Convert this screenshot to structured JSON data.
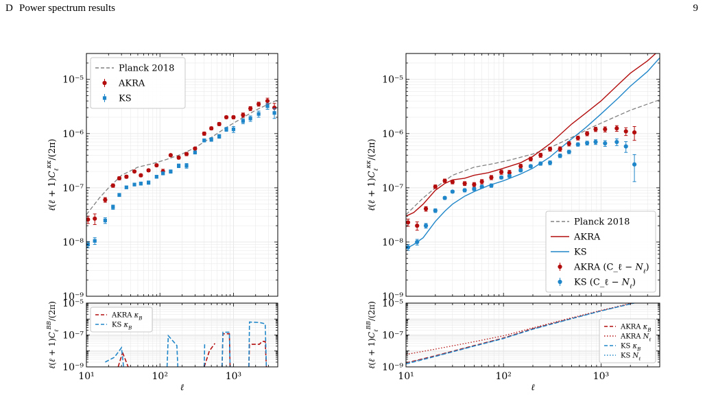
{
  "header": {
    "section_number": "D",
    "section_title": "Power spectrum results",
    "page_number": "9"
  },
  "colors": {
    "akra": "#b30d0d",
    "ks": "#1f86c9",
    "planck": "#808080",
    "grid": "#e6e6e6"
  },
  "chart_data": [
    {
      "panel": "left-top",
      "type": "scatter",
      "x_scale": "log",
      "y_scale": "log",
      "xlim": [
        10,
        4000
      ],
      "ylim": [
        1e-09,
        3e-05
      ],
      "ylabel": "ℓ(ℓ + 1)C_ℓ^κκ/(2π)",
      "grid": true,
      "legend_placement": "top-left",
      "y_tick_labels": [
        "10⁻⁹",
        "10⁻⁸",
        "10⁻⁷",
        "10⁻⁶",
        "10⁻⁵"
      ],
      "series": [
        {
          "name": "Planck 2018",
          "style": "dashed",
          "color": "#808080",
          "x": [
            10,
            15,
            20,
            30,
            50,
            80,
            120,
            200,
            300,
            500,
            800,
            1200,
            2000,
            3000,
            4000
          ],
          "y": [
            3.2e-08,
            6.5e-08,
            1e-07,
            1.7e-07,
            2.4e-07,
            2.8e-07,
            3.3e-07,
            4.2e-07,
            5.5e-07,
            8.5e-07,
            1.3e-06,
            1.8e-06,
            2.7e-06,
            3.5e-06,
            4.2e-06
          ]
        },
        {
          "name": "AKRA",
          "style": "points",
          "color": "#b30d0d",
          "x": [
            10.5,
            13,
            18,
            23,
            28,
            35,
            45,
            55,
            70,
            90,
            110,
            140,
            180,
            230,
            300,
            400,
            500,
            640,
            800,
            1000,
            1350,
            1700,
            2200,
            2900,
            3600
          ],
          "y": [
            2.6e-08,
            2.7e-08,
            6e-08,
            1.1e-07,
            1.5e-07,
            1.6e-07,
            2e-07,
            1.7e-07,
            2.1e-07,
            2.6e-07,
            2e-07,
            4e-07,
            3.6e-07,
            4.2e-07,
            5.3e-07,
            1e-06,
            1.25e-06,
            1.5e-06,
            2e-06,
            2e-06,
            2.2e-06,
            2.9e-06,
            3.5e-06,
            4e-06,
            3e-06
          ],
          "error_y": [
            4e-09,
            6e-09,
            6e-09,
            8e-09,
            1e-08,
            1e-08,
            1e-08,
            1e-08,
            1.2e-08,
            1.5e-08,
            2e-08,
            2e-08,
            2e-08,
            3e-08,
            3e-08,
            7e-08,
            8e-08,
            1e-07,
            1.2e-07,
            1.3e-07,
            2e-07,
            2.5e-07,
            3e-07,
            5e-07,
            6e-07
          ]
        },
        {
          "name": "KS",
          "style": "points",
          "color": "#1f86c9",
          "x": [
            10.5,
            13,
            18,
            23,
            28,
            35,
            45,
            55,
            70,
            90,
            110,
            140,
            180,
            230,
            300,
            400,
            500,
            640,
            800,
            1000,
            1350,
            1700,
            2200,
            2900,
            3600
          ],
          "y": [
            9e-09,
            1.05e-08,
            2.5e-08,
            4.4e-08,
            7.4e-08,
            1.02e-07,
            1.15e-07,
            1.2e-07,
            1.25e-07,
            1.6e-07,
            1.85e-07,
            2e-07,
            2.55e-07,
            2.55e-07,
            4.5e-07,
            7.5e-07,
            7.8e-07,
            8.9e-07,
            1.2e-06,
            1.2e-06,
            1.7e-06,
            1.9e-06,
            2.3e-06,
            3.2e-06,
            2.4e-06
          ],
          "error_y": [
            1.2e-09,
            1.5e-09,
            3e-09,
            4e-09,
            5e-09,
            6e-09,
            7e-09,
            8e-09,
            9e-09,
            1e-08,
            1.2e-08,
            1.4e-08,
            2e-08,
            2.5e-08,
            3e-08,
            5e-08,
            6e-08,
            7e-08,
            1e-07,
            1.5e-07,
            1.8e-07,
            2.2e-07,
            3e-07,
            4e-07,
            5e-07
          ]
        }
      ]
    },
    {
      "panel": "left-bottom",
      "type": "line",
      "x_scale": "log",
      "y_scale": "log",
      "xlim": [
        10,
        4000
      ],
      "ylim": [
        1e-09,
        1e-05
      ],
      "xlabel": "ℓ",
      "ylabel": "ℓ(ℓ + 1)C_ℓ^BB/(2π)",
      "grid": true,
      "legend_placement": "top-left",
      "x_tick_labels": [
        "10¹",
        "10²",
        "10³"
      ],
      "y_tick_labels": [
        "10⁻⁹",
        "10⁻⁷",
        "10⁻⁵"
      ],
      "series": [
        {
          "name": "AKRA κ_B",
          "style": "dashed",
          "color": "#b30d0d",
          "segments": [
            {
              "x": [
                27,
                31
              ],
              "y": [
                1e-09,
                8e-09
              ]
            },
            {
              "x": [
                31,
                37
              ],
              "y": [
                8e-09,
                1e-09
              ]
            },
            {
              "x": [
                400,
                470,
                560
              ],
              "y": [
                1e-09,
                1e-08,
                3e-08
              ]
            },
            {
              "x": [
                700,
                720,
                880,
                900
              ],
              "y": [
                1e-09,
                1.2e-07,
                1.2e-07,
                1e-09
              ]
            },
            {
              "x": [
                1620,
                1650,
                2250,
                2450,
                2700,
                2800
              ],
              "y": [
                1e-09,
                2.6e-08,
                2.6e-08,
                4e-08,
                4e-08,
                1e-09
              ]
            }
          ]
        },
        {
          "name": "KS κ_B",
          "style": "dashed",
          "color": "#1f86c9",
          "segments": [
            {
              "x": [
                18,
                24,
                30,
                32
              ],
              "y": [
                2e-09,
                4e-09,
                1.6e-08,
                1e-09
              ]
            },
            {
              "x": [
                125,
                130,
                170,
                175
              ],
              "y": [
                1e-09,
                9e-08,
                2.2e-08,
                1e-09
              ]
            },
            {
              "x": [
                400,
                405
              ],
              "y": [
                1e-09,
                2.6e-08
              ]
            },
            {
              "x": [
                700,
                720,
                880,
                900
              ],
              "y": [
                1e-09,
                1.5e-07,
                1.5e-07,
                1e-09
              ]
            },
            {
              "x": [
                1620,
                1650,
                2300,
                2700,
                2800
              ],
              "y": [
                1e-09,
                6.5e-07,
                6e-07,
                5e-07,
                1e-09
              ]
            }
          ]
        }
      ]
    },
    {
      "panel": "right-top",
      "type": "scatter",
      "x_scale": "log",
      "y_scale": "log",
      "xlim": [
        10,
        4000
      ],
      "ylim": [
        1e-09,
        3e-05
      ],
      "ylabel": "ℓ(ℓ + 1)C_ℓ^κκ/(2π)",
      "grid": true,
      "legend_placement": "bottom-right",
      "y_tick_labels": [
        "10⁻⁹",
        "10⁻⁸",
        "10⁻⁷",
        "10⁻⁶",
        "10⁻⁵"
      ],
      "series": [
        {
          "name": "Planck 2018",
          "style": "dashed",
          "color": "#808080",
          "x": [
            10,
            15,
            20,
            30,
            50,
            80,
            120,
            200,
            300,
            500,
            800,
            1200,
            2000,
            3000,
            4000
          ],
          "y": [
            3.2e-08,
            6.5e-08,
            1e-07,
            1.7e-07,
            2.4e-07,
            2.8e-07,
            3.3e-07,
            4.2e-07,
            5.5e-07,
            8.5e-07,
            1.3e-06,
            1.8e-06,
            2.7e-06,
            3.5e-06,
            4.2e-06
          ]
        },
        {
          "name": "AKRA",
          "style": "line",
          "color": "#b30d0d",
          "x": [
            10,
            12,
            15,
            20,
            25,
            30,
            40,
            50,
            70,
            100,
            150,
            200,
            300,
            500,
            700,
            1000,
            1500,
            2000,
            3000,
            4000
          ],
          "y": [
            3e-08,
            3.5e-08,
            5e-08,
            9e-08,
            1.2e-07,
            1.4e-07,
            1.5e-07,
            1.7e-07,
            1.9e-07,
            2.3e-07,
            2.9e-07,
            3.8e-07,
            6.5e-07,
            1.5e-06,
            2.4e-06,
            4e-06,
            8e-06,
            1.3e-05,
            2.2e-05,
            3.5e-05
          ]
        },
        {
          "name": "KS",
          "style": "line",
          "color": "#1f86c9",
          "x": [
            10,
            12,
            15,
            20,
            25,
            30,
            40,
            50,
            70,
            100,
            150,
            200,
            300,
            500,
            700,
            1000,
            1500,
            2000,
            3000,
            4000
          ],
          "y": [
            7.5e-09,
            9e-09,
            1.2e-08,
            2.4e-08,
            3.7e-08,
            5e-08,
            7e-08,
            8.5e-08,
            1.1e-07,
            1.35e-07,
            1.8e-07,
            2.3e-07,
            3.7e-07,
            8e-07,
            1.3e-06,
            2.3e-06,
            4.5e-06,
            7.5e-06,
            1.4e-05,
            2.5e-05
          ]
        },
        {
          "name": "AKRA (C_ℓ − N_ℓ)",
          "style": "points",
          "color": "#b30d0d",
          "x": [
            10.5,
            13,
            16,
            20,
            25,
            30,
            40,
            50,
            60,
            75,
            95,
            115,
            150,
            190,
            240,
            300,
            380,
            470,
            580,
            720,
            880,
            1100,
            1450,
            1800,
            2200
          ],
          "y": [
            2.3e-08,
            2e-08,
            4.1e-08,
            1.05e-07,
            1.35e-07,
            1.28e-07,
            1.2e-07,
            1.15e-07,
            1.3e-07,
            1.55e-07,
            1.95e-07,
            1.9e-07,
            2.5e-07,
            3.4e-07,
            4e-07,
            5.2e-07,
            5.2e-07,
            6.5e-07,
            8.3e-07,
            1e-06,
            1.2e-06,
            1.2e-06,
            1.25e-06,
            1.1e-06,
            1.05e-06
          ],
          "error_y": [
            3.5e-09,
            3.5e-09,
            4e-09,
            8e-09,
            1e-08,
            1e-08,
            1e-08,
            1e-08,
            1.2e-08,
            1.4e-08,
            1.8e-08,
            2e-08,
            2.2e-08,
            2.8e-08,
            3.5e-08,
            4.5e-08,
            5e-08,
            6e-08,
            7e-08,
            9e-08,
            1.1e-07,
            1.3e-07,
            1.5e-07,
            1.8e-07,
            3e-07
          ]
        },
        {
          "name": "KS (C_ℓ − N_ℓ)",
          "style": "points",
          "color": "#1f86c9",
          "x": [
            10.5,
            13,
            16,
            20,
            25,
            30,
            40,
            50,
            60,
            75,
            95,
            115,
            150,
            190,
            240,
            300,
            380,
            470,
            580,
            720,
            880,
            1100,
            1450,
            1800,
            2200
          ],
          "y": [
            8e-09,
            1e-08,
            2e-08,
            3.8e-08,
            6.5e-08,
            8.5e-08,
            9e-08,
            9.5e-08,
            1.05e-07,
            1.1e-07,
            1.55e-07,
            1.65e-07,
            2.1e-07,
            2.5e-07,
            2.8e-07,
            2.9e-07,
            3.9e-07,
            4.6e-07,
            6.3e-07,
            6.7e-07,
            7e-07,
            6.6e-07,
            7e-07,
            5.8e-07,
            2.7e-07
          ],
          "error_y": [
            1e-09,
            1.2e-09,
            2e-09,
            3e-09,
            4e-09,
            5e-09,
            6e-09,
            6.5e-09,
            7e-09,
            8e-09,
            1e-08,
            1.1e-08,
            1.3e-08,
            1.6e-08,
            2e-08,
            2.4e-08,
            3e-08,
            3.5e-08,
            4.5e-08,
            5.5e-08,
            7e-08,
            8e-08,
            1e-07,
            1.3e-07,
            1.4e-07
          ]
        }
      ]
    },
    {
      "panel": "right-bottom",
      "type": "line",
      "x_scale": "log",
      "y_scale": "log",
      "xlim": [
        10,
        4000
      ],
      "ylim": [
        1e-09,
        1e-05
      ],
      "xlabel": "ℓ",
      "ylabel": "ℓ(ℓ + 1)C_ℓ^BB/(2π)",
      "grid": true,
      "legend_placement": "bottom-right",
      "x_tick_labels": [
        "10¹",
        "10²",
        "10³"
      ],
      "y_tick_labels": [
        "10⁻⁹",
        "10⁻⁷",
        "10⁻⁵"
      ],
      "series": [
        {
          "name": "AKRA κ_B",
          "style": "dashed",
          "color": "#b30d0d",
          "x": [
            10,
            20,
            50,
            100,
            200,
            500,
            1000,
            2000,
            4000
          ],
          "y": [
            1.8e-09,
            5e-09,
            2.2e-08,
            6.5e-08,
            2.5e-07,
            1.1e-06,
            3.3e-06,
            9e-06,
            2.5e-05
          ]
        },
        {
          "name": "AKRA N_ℓ",
          "style": "dotted",
          "color": "#b30d0d",
          "x": [
            10,
            20,
            50,
            100,
            200,
            500,
            1000,
            2000,
            4000
          ],
          "y": [
            6e-09,
            1.3e-08,
            3.8e-08,
            9e-08,
            2.8e-07,
            1.2e-06,
            3.5e-06,
            9.5e-06,
            2.6e-05
          ]
        },
        {
          "name": "KS κ_B",
          "style": "dashed",
          "color": "#1f86c9",
          "x": [
            10,
            20,
            50,
            100,
            200,
            500,
            1000,
            2000,
            4000
          ],
          "y": [
            1.5e-09,
            4.5e-09,
            2e-08,
            6e-08,
            2.3e-07,
            1.05e-06,
            3.2e-06,
            8.8e-06,
            2.4e-05
          ]
        },
        {
          "name": "KS N_ℓ",
          "style": "dotted",
          "color": "#1f86c9",
          "x": [
            10,
            20,
            50,
            100,
            200,
            500,
            1000,
            2000,
            4000
          ],
          "y": [
            1.7e-09,
            4.8e-09,
            2.1e-08,
            6.2e-08,
            2.4e-07,
            1.08e-06,
            3.25e-06,
            8.9e-06,
            2.45e-05
          ]
        }
      ]
    }
  ]
}
